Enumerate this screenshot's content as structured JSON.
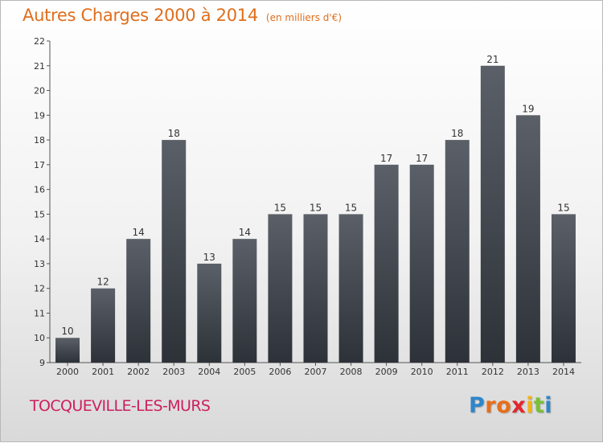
{
  "chart_data": {
    "type": "bar",
    "title": "Autres Charges 2000 à 2014",
    "subtitle": "(en milliers d'€)",
    "categories": [
      "2000",
      "2001",
      "2002",
      "2003",
      "2004",
      "2005",
      "2006",
      "2007",
      "2008",
      "2009",
      "2010",
      "2011",
      "2012",
      "2013",
      "2014"
    ],
    "values": [
      10,
      12,
      14,
      18,
      13,
      14,
      15,
      15,
      15,
      17,
      17,
      18,
      21,
      19,
      15
    ],
    "ylim": [
      9,
      22
    ],
    "yticks": [
      9,
      10,
      11,
      12,
      13,
      14,
      15,
      16,
      17,
      18,
      19,
      20,
      21,
      22
    ],
    "grid": false,
    "bar_color": "#4a4f57",
    "title_color": "#e06e1c"
  },
  "footer": {
    "town": "TOCQUEVILLE-LES-MURS",
    "town_color": "#cc1f5e",
    "logo": {
      "text": "Proxiti",
      "letters": [
        "P",
        "r",
        "o",
        "x",
        "i",
        "t",
        "i"
      ]
    }
  }
}
